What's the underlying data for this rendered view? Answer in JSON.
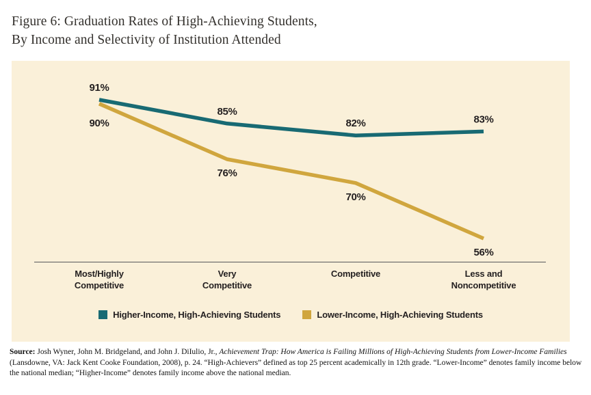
{
  "title": {
    "line1": "Figure 6: Graduation Rates of High-Achieving Students,",
    "line2": "By Income and Selectivity of Institution Attended"
  },
  "colors": {
    "panel_bg": "#faf0d9",
    "higher_income": "#186a73",
    "lower_income": "#d0a63e",
    "label_text": "#231f20",
    "axis_line": "#55565a"
  },
  "chart_data": {
    "type": "line",
    "title": "Graduation Rates of High-Achieving Students, By Income and Selectivity of Institution Attended",
    "categories": [
      "Most/Highly\nCompetitive",
      "Very\nCompetitive",
      "Competitive",
      "Less and\nNoncompetitive"
    ],
    "series": [
      {
        "name": "Higher-Income, High-Achieving Students",
        "values": [
          91,
          85,
          82,
          83
        ],
        "color": "#186a73",
        "label_position": "above"
      },
      {
        "name": "Lower-Income, High-Achieving Students",
        "values": [
          90,
          76,
          70,
          56
        ],
        "color": "#d0a63e",
        "label_position": "below"
      }
    ],
    "unit": "%",
    "xlabel": "",
    "ylabel": "",
    "ylim": [
      50,
      100
    ],
    "grid": false,
    "legend_position": "bottom"
  },
  "source": {
    "label": "Source:",
    "text_before_italic": " Josh Wyner, John M. Bridgeland, and John J. DiIulio, Jr., ",
    "italic": "Achievement Trap: How America is Failing Millions of High-Achieving Students from Lower-Income Families",
    "text_after_italic": " (Lansdowne, VA: Jack Kent Cooke Foundation, 2008), p. 24. “High-Achievers” defined as top 25 percent academically in 12th grade. “Lower-Income” denotes family income below the national median; “Higher-Income” denotes family income above the national median."
  }
}
